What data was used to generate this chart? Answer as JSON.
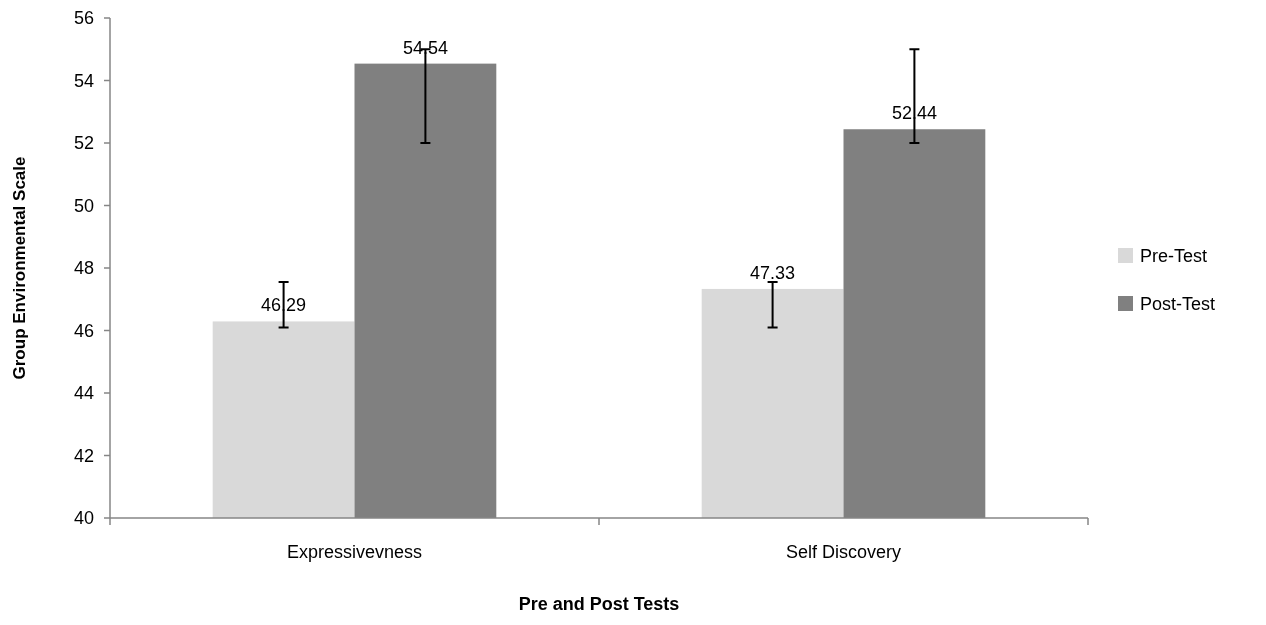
{
  "chart_data": {
    "type": "bar",
    "xlabel": "Pre and Post Tests",
    "ylabel": "Group Environmental Scale",
    "categories": [
      "Expressivevness",
      "Self Discovery"
    ],
    "series": [
      {
        "name": "Pre-Test",
        "color": "#d9d9d9",
        "values": [
          46.29,
          47.33
        ],
        "errors": [
          [
            46.1,
            47.55
          ],
          [
            46.1,
            47.55
          ]
        ]
      },
      {
        "name": "Post-Test",
        "color": "#808080",
        "values": [
          54.54,
          52.44
        ],
        "errors": [
          [
            52.0,
            55.0
          ],
          [
            52.0,
            55.0
          ]
        ]
      }
    ],
    "ylim": [
      40,
      56
    ],
    "yticks": [
      40,
      42,
      44,
      46,
      48,
      50,
      52,
      54,
      56
    ],
    "data_labels": true,
    "grid": false,
    "legend": "right"
  }
}
